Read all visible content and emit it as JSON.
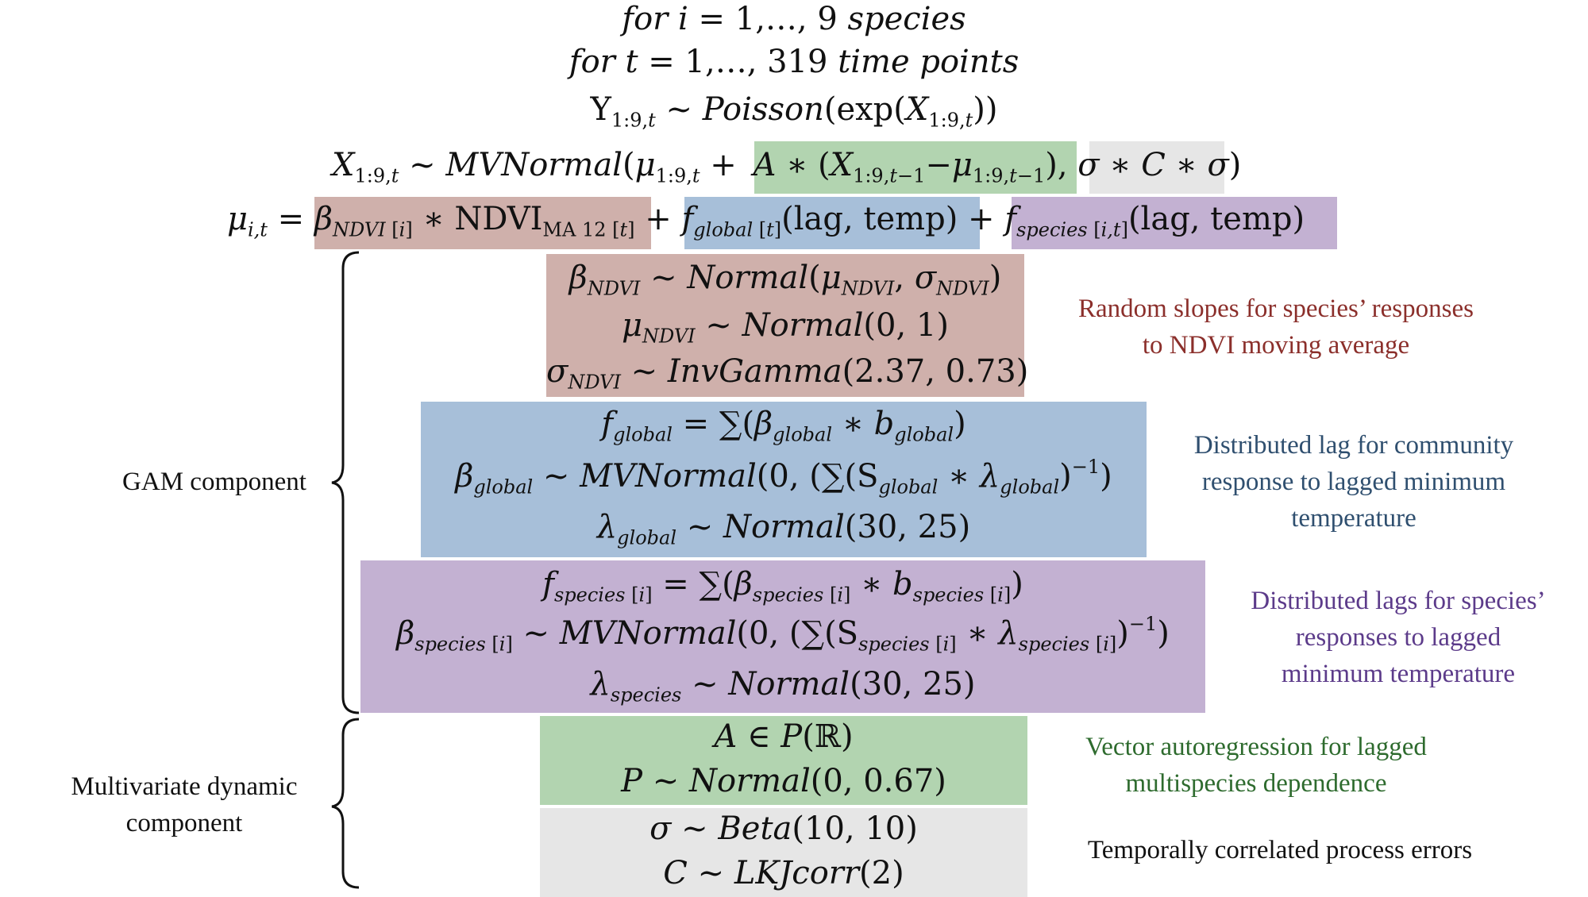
{
  "colors": {
    "ndvi": "#cfb0ab",
    "global": "#a7bfd9",
    "species": "#c3b1d2",
    "var": "#b2d4b0",
    "error": "#e6e6e6",
    "note_ndvi": "#8b2f2b",
    "note_global": "#2f4f6f",
    "note_species": "#5c3b8a",
    "note_var": "#2e6b2e",
    "note_error": "#111111"
  },
  "header": {
    "line1": "for i = 1,…,9 species",
    "line2": "for t = 1,…,319 time points",
    "line3": "Y1:9,t ~ Poisson(exp(X1:9,t))",
    "line4": "X1:9,t ~ MVNormal(μ1:9,t + A ∗ (X1:9,t−1 − μ1:9,t−1), σ ∗ C ∗ σ)",
    "line5": "μi,t = βNDVI[i] ∗ NDVIMA 12[t] + fglobal[t](lag, temp) + fspecies[i,t](lag, temp)"
  },
  "ndvi_block": {
    "l1": "βNDVI ~ Normal(μNDVI, σNDVI)",
    "l2": "μNDVI ~ Normal(0, 1)",
    "l3": "σNDVI ~ InvGamma(2.37, 0.73)",
    "note": [
      "Random slopes for species’ responses",
      "to NDVI moving average"
    ]
  },
  "global_block": {
    "l1": "fglobal = ∑(βglobal ∗ bglobal)",
    "l2": "βglobal ~ MVNormal(0, (∑(Sglobal ∗ λglobal))−1)",
    "l3": "λglobal ~ Normal(30, 25)",
    "note": [
      "Distributed lag for community",
      "response to lagged minimum",
      "temperature"
    ]
  },
  "species_block": {
    "l1": "fspecies[i] = ∑(βspecies[i] ∗ bspecies[i])",
    "l2": "βspecies[i] ~ MVNormal(0, (∑(Sspecies[i] ∗ λspecies[i]))−1)",
    "l3": "λspecies ~ Normal(30, 25)",
    "note": [
      "Distributed lags for species’",
      "responses to lagged",
      "minimum temperature"
    ]
  },
  "var_block": {
    "l1": "A ∈ P(ℝ)",
    "l2": "P ~ Normal(0, 0.67)",
    "note": [
      "Vector autoregression for lagged",
      "multispecies dependence"
    ]
  },
  "error_block": {
    "l1": "σ ~ Beta(10, 10)",
    "l2": "C ~ LKJcorr(2)",
    "note": [
      "Temporally correlated process errors"
    ]
  },
  "labels": {
    "gam": "GAM component",
    "mvd": [
      "Multivariate dynamic",
      "component"
    ]
  }
}
